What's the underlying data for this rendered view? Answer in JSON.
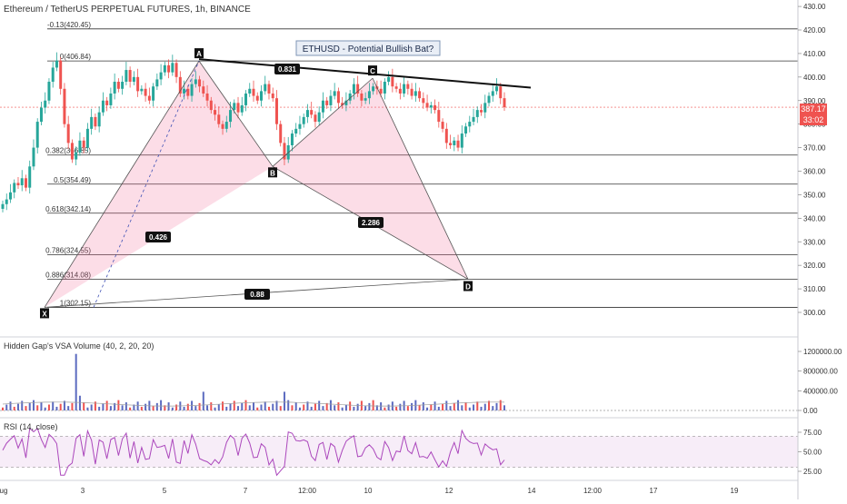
{
  "header": {
    "symbol_title": "Ethereum / TetherUS PERPETUAL FUTURES, 1h, BINANCE"
  },
  "annotation": {
    "idea_title": "ETHUSD - Potential Bullish Bat?"
  },
  "price_label": {
    "value": "387.17",
    "countdown": "33:02"
  },
  "chart_data": [
    {
      "type": "candlestick",
      "title": "Ethereum / TetherUS PERPETUAL FUTURES, 1h, BINANCE",
      "ylim": [
        290,
        430
      ],
      "y_ticks": [
        "300.00",
        "310.00",
        "320.00",
        "330.00",
        "340.00",
        "350.00",
        "360.00",
        "370.00",
        "380.00",
        "390.00",
        "400.00",
        "410.00",
        "420.00",
        "430.00"
      ],
      "x_tick_labels": [
        "ug",
        "3",
        "5",
        "7",
        "12:00",
        "10",
        "12",
        "14",
        "12:00",
        "17",
        "19"
      ],
      "last_price": 387.17,
      "close_series": [
        346,
        348,
        351,
        355,
        354,
        357,
        353,
        362,
        370,
        381,
        387,
        390,
        398,
        404,
        407,
        395,
        380,
        372,
        365,
        368,
        373,
        370,
        378,
        383,
        379,
        385,
        390,
        388,
        393,
        398,
        395,
        398,
        403,
        398,
        400,
        394,
        395,
        392,
        390,
        396,
        399,
        402,
        405,
        402,
        406,
        400,
        393,
        395,
        392,
        397,
        399,
        396,
        393,
        390,
        386,
        384,
        380,
        378,
        381,
        386,
        389,
        385,
        388,
        393,
        395,
        392,
        390,
        394,
        397,
        393,
        391,
        380,
        372,
        365,
        371,
        376,
        378,
        380,
        383,
        386,
        384,
        381,
        385,
        390,
        388,
        392,
        394,
        389,
        388,
        390,
        393,
        397,
        393,
        390,
        391,
        394,
        396,
        395,
        393,
        398,
        400,
        396,
        395,
        393,
        397,
        395,
        392,
        394,
        391,
        389,
        387,
        388,
        386,
        381,
        378,
        372,
        371,
        373,
        370,
        376,
        379,
        381,
        383,
        386,
        385,
        389,
        392,
        394,
        396,
        391,
        387.17
      ],
      "fibonacci_levels": [
        {
          "label": "-0.13(420.45)",
          "price": 420.45
        },
        {
          "label": "0(406.84)",
          "price": 406.84
        },
        {
          "label": "0.382(366.85)",
          "price": 366.85
        },
        {
          "label": "0.5(354.49)",
          "price": 354.49
        },
        {
          "label": "0.618(342.14)",
          "price": 342.14
        },
        {
          "label": "0.786(324.55)",
          "price": 324.55
        },
        {
          "label": "0.886(314.08)",
          "price": 314.08
        },
        {
          "label": "1(302.15)",
          "price": 302.15
        }
      ],
      "harmonic_pattern": {
        "points": [
          {
            "label": "X",
            "price": 302.15
          },
          {
            "label": "A",
            "price": 406.84
          },
          {
            "label": "B",
            "price": 362.0
          },
          {
            "label": "C",
            "price": 399.5
          },
          {
            "label": "D",
            "price": 314.08
          }
        ],
        "ratios": [
          "0.426",
          "0.831",
          "2.286",
          "0.88"
        ]
      }
    },
    {
      "type": "bar",
      "title": "Hidden Gap's VSA Volume (40, 2, 20, 20)",
      "ylim": [
        0,
        1200000
      ],
      "y_ticks": [
        "0.00",
        "400000.00",
        "800000.00",
        "1200000.00"
      ]
    },
    {
      "type": "line",
      "title": "RSI (14, close)",
      "ylim": [
        15,
        85
      ],
      "y_ticks": [
        "25.00",
        "50.00",
        "75.00"
      ],
      "bands": [
        30,
        70
      ]
    }
  ]
}
